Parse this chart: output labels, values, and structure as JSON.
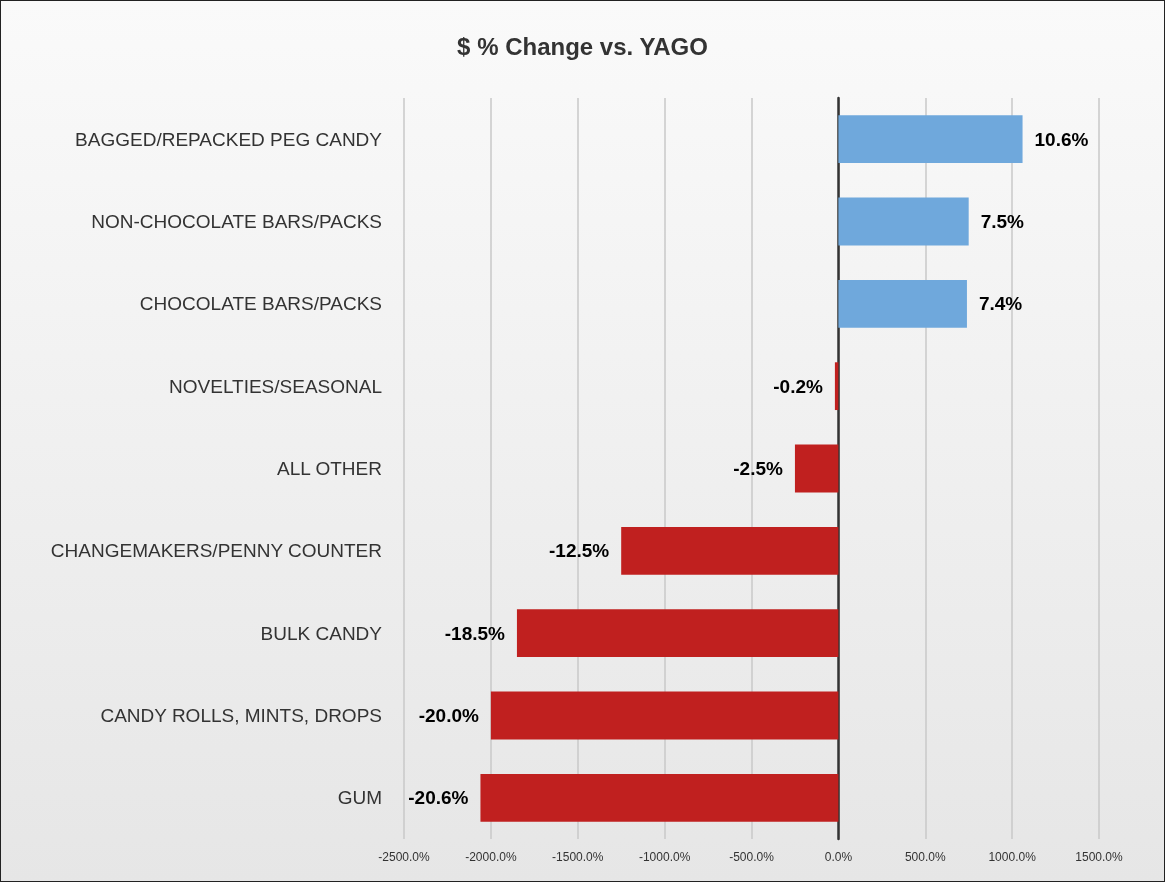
{
  "chart_data": {
    "type": "bar",
    "orientation": "horizontal",
    "title": "$ % Change vs. YAGO",
    "categories": [
      "BAGGED/REPACKED PEG CANDY",
      "NON-CHOCOLATE BARS/PACKS",
      "CHOCOLATE BARS/PACKS",
      "NOVELTIES/SEASONAL",
      "ALL OTHER",
      "CHANGEMAKERS/PENNY COUNTER",
      "BULK CANDY",
      "CANDY ROLLS, MINTS, DROPS",
      "GUM"
    ],
    "values": [
      10.6,
      7.5,
      7.4,
      -0.2,
      -2.5,
      -12.5,
      -18.5,
      -20.0,
      -20.6
    ],
    "value_labels": [
      "10.6%",
      "7.5%",
      "7.4%",
      "-0.2%",
      "-2.5%",
      "-12.5%",
      "-18.5%",
      "-20.0%",
      "-20.6%"
    ],
    "colors": [
      "#6fa8dc",
      "#6fa8dc",
      "#6fa8dc",
      "#c0201f",
      "#c0201f",
      "#c0201f",
      "#c0201f",
      "#c0201f",
      "#c0201f"
    ],
    "xlim": [
      -25,
      15
    ],
    "xticks": [
      {
        "value": -25,
        "label": "-2500.0%"
      },
      {
        "value": -20,
        "label": "-2000.0%"
      },
      {
        "value": -15,
        "label": "-1500.0%"
      },
      {
        "value": -10,
        "label": "-1000.0%"
      },
      {
        "value": -5,
        "label": "-500.0%"
      },
      {
        "value": 0,
        "label": "0.0%"
      },
      {
        "value": 5,
        "label": "500.0%"
      },
      {
        "value": 10,
        "label": "1000.0%"
      },
      {
        "value": 15,
        "label": "1500.0%"
      }
    ],
    "grid": "x"
  }
}
